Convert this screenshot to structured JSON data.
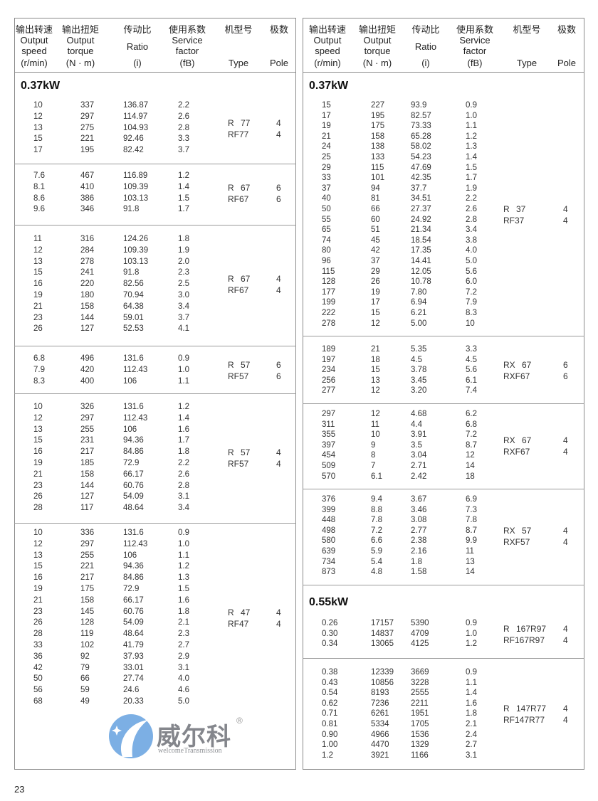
{
  "header": {
    "columns": [
      {
        "cn": "输出转速",
        "en": [
          "Output",
          "speed",
          "(r/min)"
        ]
      },
      {
        "cn": "输出扭矩",
        "en": [
          "Output",
          "torque",
          "(N · m)"
        ]
      },
      {
        "cn": "传动比",
        "en": [
          "",
          "Ratio",
          "(i)"
        ]
      },
      {
        "cn": "使用系数",
        "en": [
          "Service",
          "factor",
          "(fB)"
        ]
      },
      {
        "cn": "机型号",
        "en": [
          "",
          "",
          "Type"
        ]
      },
      {
        "cn": "极数",
        "en": [
          "",
          "",
          "Pole"
        ]
      }
    ]
  },
  "left": {
    "headings": [
      "0.37kW"
    ],
    "groups": [
      {
        "type": [
          "R 77",
          "RF77"
        ],
        "pole": [
          "4",
          "4"
        ],
        "rows": [
          [
            "10",
            "337",
            "136.87",
            "2.2"
          ],
          [
            "12",
            "297",
            "114.97",
            "2.6"
          ],
          [
            "13",
            "275",
            "104.93",
            "2.8"
          ],
          [
            "15",
            "221",
            "92.46",
            "3.3"
          ],
          [
            "17",
            "195",
            "82.42",
            "3.7"
          ]
        ]
      },
      {
        "type": [
          "R 67",
          "RF67"
        ],
        "pole": [
          "6",
          "6"
        ],
        "rows": [
          [
            "7.6",
            "467",
            "116.89",
            "1.2"
          ],
          [
            "8.1",
            "410",
            "109.39",
            "1.4"
          ],
          [
            "8.6",
            "386",
            "103.13",
            "1.5"
          ],
          [
            "9.6",
            "346",
            "91.8",
            "1.7"
          ]
        ]
      },
      {
        "type": [
          "R 67",
          "RF67"
        ],
        "pole": [
          "4",
          "4"
        ],
        "rows": [
          [
            "11",
            "316",
            "124.26",
            "1.8"
          ],
          [
            "12",
            "284",
            "109.39",
            "1.9"
          ],
          [
            "13",
            "278",
            "103.13",
            "2.0"
          ],
          [
            "15",
            "241",
            "91.8",
            "2.3"
          ],
          [
            "16",
            "220",
            "82.56",
            "2.5"
          ],
          [
            "19",
            "180",
            "70.94",
            "3.0"
          ],
          [
            "21",
            "158",
            "64.38",
            "3.4"
          ],
          [
            "23",
            "144",
            "59.01",
            "3.7"
          ],
          [
            "26",
            "127",
            "52.53",
            "4.1"
          ]
        ]
      },
      {
        "type": [
          "R 57",
          "RF57"
        ],
        "pole": [
          "6",
          "6"
        ],
        "rows": [
          [
            "6.8",
            "496",
            "131.6",
            "0.9"
          ],
          [
            "7.9",
            "420",
            "112.43",
            "1.0"
          ],
          [
            "8.3",
            "400",
            "106",
            "1.1"
          ]
        ]
      },
      {
        "type": [
          "R 57",
          "RF57"
        ],
        "pole": [
          "4",
          "4"
        ],
        "rows": [
          [
            "10",
            "326",
            "131.6",
            "1.2"
          ],
          [
            "12",
            "297",
            "112.43",
            "1.4"
          ],
          [
            "13",
            "255",
            "106",
            "1.6"
          ],
          [
            "15",
            "231",
            "94.36",
            "1.7"
          ],
          [
            "16",
            "217",
            "84.86",
            "1.8"
          ],
          [
            "19",
            "185",
            "72.9",
            "2.2"
          ],
          [
            "21",
            "158",
            "66.17",
            "2.6"
          ],
          [
            "23",
            "144",
            "60.76",
            "2.8"
          ],
          [
            "26",
            "127",
            "54.09",
            "3.1"
          ],
          [
            "28",
            "117",
            "48.64",
            "3.4"
          ]
        ]
      },
      {
        "type": [
          "R 47",
          "RF47"
        ],
        "pole": [
          "4",
          "4"
        ],
        "rows": [
          [
            "10",
            "336",
            "131.6",
            "0.9"
          ],
          [
            "12",
            "297",
            "112.43",
            "1.0"
          ],
          [
            "13",
            "255",
            "106",
            "1.1"
          ],
          [
            "15",
            "221",
            "94.36",
            "1.2"
          ],
          [
            "16",
            "217",
            "84.86",
            "1.3"
          ],
          [
            "19",
            "175",
            "72.9",
            "1.5"
          ],
          [
            "21",
            "158",
            "66.17",
            "1.6"
          ],
          [
            "23",
            "145",
            "60.76",
            "1.8"
          ],
          [
            "26",
            "128",
            "54.09",
            "2.1"
          ],
          [
            "28",
            "119",
            "48.64",
            "2.3"
          ],
          [
            "33",
            "102",
            "41.79",
            "2.7"
          ],
          [
            "36",
            "92",
            "37.93",
            "2.9"
          ],
          [
            "42",
            "79",
            "33.01",
            "3.1"
          ],
          [
            "50",
            "66",
            "27.74",
            "4.0"
          ],
          [
            "56",
            "59",
            "24.6",
            "4.6"
          ],
          [
            "68",
            "49",
            "20.33",
            "5.0"
          ]
        ]
      }
    ]
  },
  "right": {
    "headings": [
      "0.37kW",
      "0.55kW"
    ],
    "groups": [
      {
        "type": [
          "R 37",
          "RF37"
        ],
        "pole": [
          "4",
          "4"
        ],
        "rows": [
          [
            "15",
            "227",
            "93.9",
            "0.9"
          ],
          [
            "17",
            "195",
            "82.57",
            "1.0"
          ],
          [
            "19",
            "175",
            "73.33",
            "1.1"
          ],
          [
            "21",
            "158",
            "65.28",
            "1.2"
          ],
          [
            "24",
            "138",
            "58.02",
            "1.3"
          ],
          [
            "25",
            "133",
            "54.23",
            "1.4"
          ],
          [
            "29",
            "115",
            "47.69",
            "1.5"
          ],
          [
            "33",
            "101",
            "42.35",
            "1.7"
          ],
          [
            "37",
            "94",
            "37.7",
            "1.9"
          ],
          [
            "40",
            "81",
            "34.51",
            "2.2"
          ],
          [
            "50",
            "66",
            "27.37",
            "2.6"
          ],
          [
            "55",
            "60",
            "24.92",
            "2.8"
          ],
          [
            "65",
            "51",
            "21.34",
            "3.4"
          ],
          [
            "74",
            "45",
            "18.54",
            "3.8"
          ],
          [
            "80",
            "42",
            "17.35",
            "4.0"
          ],
          [
            "96",
            "37",
            "14.41",
            "5.0"
          ],
          [
            "115",
            "29",
            "12.05",
            "5.6"
          ],
          [
            "128",
            "26",
            "10.78",
            "6.0"
          ],
          [
            "177",
            "19",
            "7.80",
            "7.2"
          ],
          [
            "199",
            "17",
            "6.94",
            "7.9"
          ],
          [
            "222",
            "15",
            "6.21",
            "8.3"
          ],
          [
            "278",
            "12",
            "5.00",
            "10"
          ]
        ]
      },
      {
        "type": [
          "RX 67",
          "RXF67"
        ],
        "pole": [
          "6",
          "6"
        ],
        "rows": [
          [
            "189",
            "21",
            "5.35",
            "3.3"
          ],
          [
            "197",
            "18",
            "4.5",
            "4.5"
          ],
          [
            "234",
            "15",
            "3.78",
            "5.6"
          ],
          [
            "256",
            "13",
            "3.45",
            "6.1"
          ],
          [
            "277",
            "12",
            "3.20",
            "7.4"
          ]
        ]
      },
      {
        "type": [
          "RX 67",
          "RXF67"
        ],
        "pole": [
          "4",
          "4"
        ],
        "rows": [
          [
            "297",
            "12",
            "4.68",
            "6.2"
          ],
          [
            "311",
            "11",
            "4.4",
            "6.8"
          ],
          [
            "355",
            "10",
            "3.91",
            "7.2"
          ],
          [
            "397",
            "9",
            "3.5",
            "8.7"
          ],
          [
            "454",
            "8",
            "3.04",
            "12"
          ],
          [
            "509",
            "7",
            "2.71",
            "14"
          ],
          [
            "570",
            "6.1",
            "2.42",
            "18"
          ]
        ]
      },
      {
        "type": [
          "RX 57",
          "RXF57"
        ],
        "pole": [
          "4",
          "4"
        ],
        "rows": [
          [
            "376",
            "9.4",
            "3.67",
            "6.9"
          ],
          [
            "399",
            "8.8",
            "3.46",
            "7.3"
          ],
          [
            "448",
            "7.8",
            "3.08",
            "7.8"
          ],
          [
            "498",
            "7.2",
            "2.77",
            "8.7"
          ],
          [
            "580",
            "6.6",
            "2.38",
            "9.9"
          ],
          [
            "639",
            "5.9",
            "2.16",
            "11"
          ],
          [
            "734",
            "5.4",
            "1.8",
            "13"
          ],
          [
            "873",
            "4.8",
            "1.58",
            "14"
          ]
        ]
      },
      {
        "type": [
          "R 167R97",
          "RF167R97"
        ],
        "pole": [
          "4",
          "4"
        ],
        "rows": [
          [
            "0.26",
            "17157",
            "5390",
            "0.9"
          ],
          [
            "0.30",
            "14837",
            "4709",
            "1.0"
          ],
          [
            "0.34",
            "13065",
            "4125",
            "1.2"
          ]
        ]
      },
      {
        "type": [
          "R 147R77",
          "RF147R77"
        ],
        "pole": [
          "4",
          "4"
        ],
        "rows": [
          [
            "0.38",
            "12339",
            "3669",
            "0.9"
          ],
          [
            "0.43",
            "10856",
            "3228",
            "1.1"
          ],
          [
            "0.54",
            "8193",
            "2555",
            "1.4"
          ],
          [
            "0.62",
            "7236",
            "2211",
            "1.6"
          ],
          [
            "0.71",
            "6261",
            "1951",
            "1.8"
          ],
          [
            "0.81",
            "5334",
            "1705",
            "2.1"
          ],
          [
            "0.90",
            "4966",
            "1536",
            "2.4"
          ],
          [
            "1.00",
            "4470",
            "1329",
            "2.7"
          ],
          [
            "1.2",
            "3921",
            "1166",
            "3.1"
          ]
        ]
      }
    ]
  },
  "watermark": {
    "cn": "威尔科",
    "en": "welcomeTransmission",
    "mark": "®",
    "color": "#4a90d9"
  },
  "page_number": "23"
}
